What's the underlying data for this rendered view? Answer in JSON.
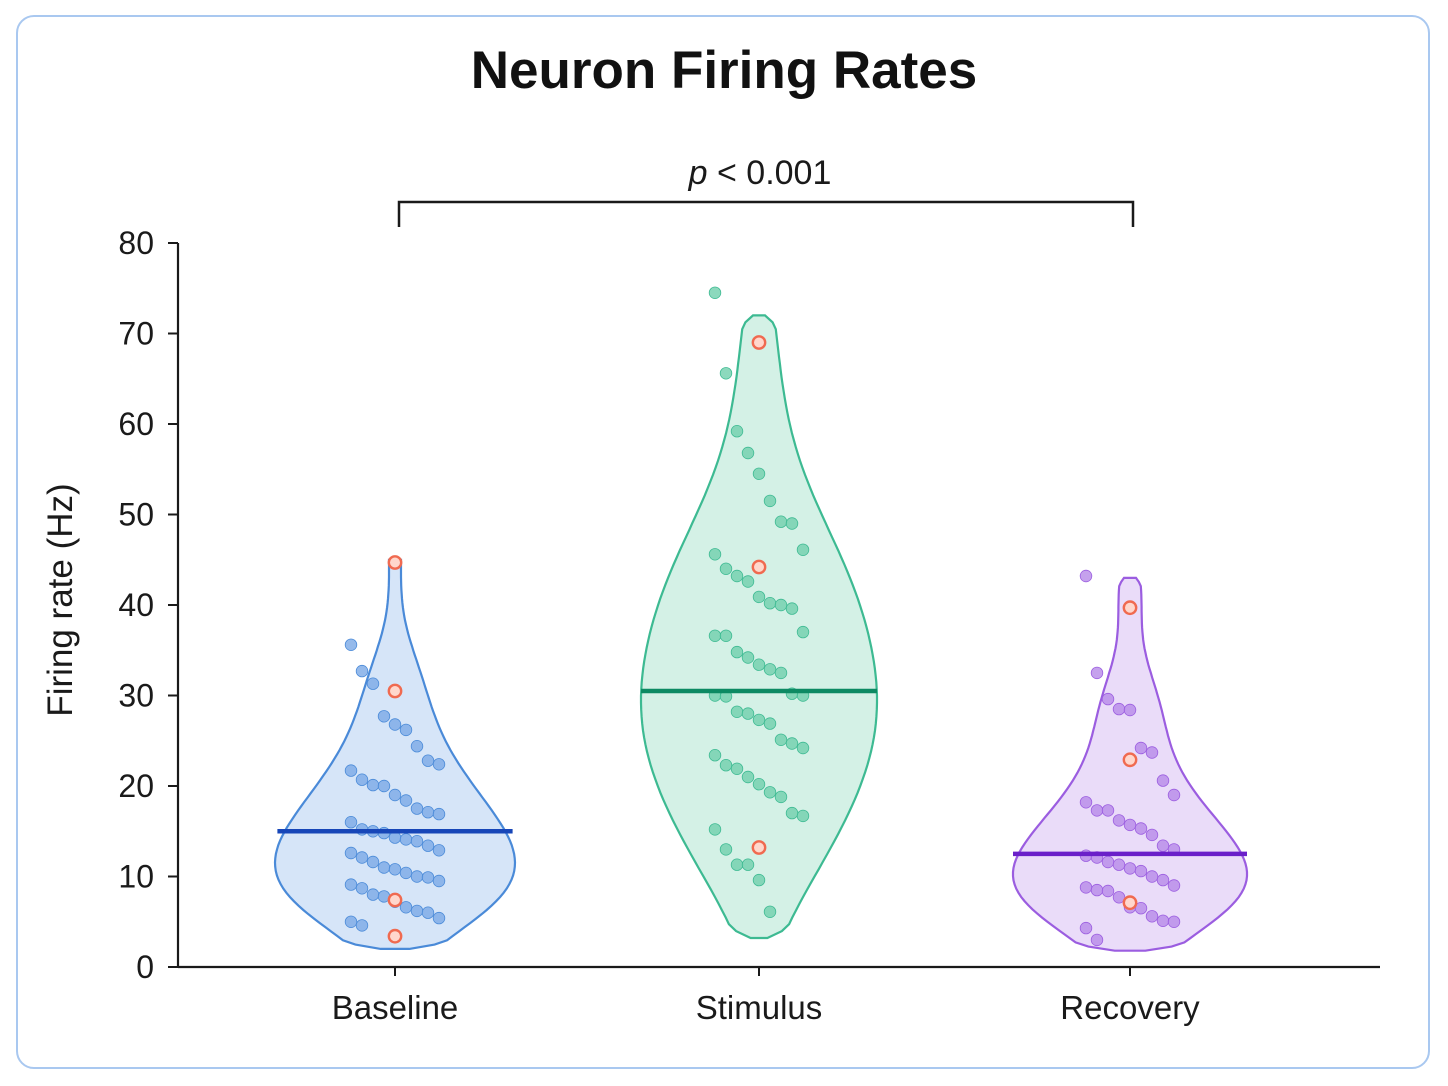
{
  "chart_data": {
    "type": "violin",
    "title": "Neuron Firing Rates",
    "ylabel": "Firing rate (Hz)",
    "xlabel": "",
    "ylim": [
      0,
      80
    ],
    "yticks": [
      0,
      10,
      20,
      30,
      40,
      50,
      60,
      70,
      80
    ],
    "categories": [
      "Baseline",
      "Stimulus",
      "Recovery"
    ],
    "annotation": {
      "italic": "p",
      "text": " < 0.001",
      "from": "Baseline",
      "to": "Recovery"
    },
    "colors": {
      "Baseline": {
        "fill": "#cfe0f7",
        "stroke": "#4a8ad8",
        "point": "#7aa9e6",
        "median": "#1746b8"
      },
      "Stimulus": {
        "fill": "#cdeee2",
        "stroke": "#3dba92",
        "point": "#6fd0ad",
        "median": "#0d8a63"
      },
      "Recovery": {
        "fill": "#e6d6f8",
        "stroke": "#9b5de0",
        "point": "#b68ae8",
        "median": "#6a1fc9"
      },
      "highlight": "#f06a50"
    },
    "series": [
      {
        "category": "Baseline",
        "median": 15,
        "range": [
          2,
          45
        ],
        "highlighted": [
          44.7,
          30.5,
          7.4,
          3.4
        ],
        "points": [
          35.6,
          32.7,
          31.3,
          27.7,
          26.8,
          26.2,
          24.4,
          22.8,
          22.4,
          21.7,
          20.7,
          20.1,
          20.0,
          19.0,
          18.4,
          17.5,
          17.1,
          16.9,
          16.0,
          15.2,
          15.0,
          14.8,
          14.3,
          14.1,
          13.9,
          13.4,
          12.9,
          12.6,
          12.1,
          11.6,
          11.0,
          10.8,
          10.4,
          10.0,
          9.9,
          9.5,
          9.1,
          8.7,
          8.0,
          7.8,
          7.2,
          6.6,
          6.2,
          6.0,
          5.4,
          5.0,
          4.6
        ]
      },
      {
        "category": "Stimulus",
        "median": 30.5,
        "range": [
          3.2,
          72
        ],
        "highlighted": [
          69,
          44.2,
          13.2
        ],
        "points": [
          74.5,
          65.6,
          59.2,
          56.8,
          54.5,
          51.5,
          49.2,
          49.0,
          46.1,
          45.6,
          44.0,
          43.2,
          42.6,
          40.9,
          40.2,
          40.0,
          39.6,
          37.0,
          36.6,
          36.6,
          34.8,
          34.2,
          33.4,
          32.9,
          32.5,
          30.2,
          30.0,
          30.0,
          29.9,
          28.2,
          28.0,
          27.3,
          26.9,
          25.1,
          24.7,
          24.2,
          23.4,
          22.3,
          21.9,
          21.0,
          20.2,
          19.3,
          18.8,
          17.0,
          16.7,
          15.2,
          13.0,
          11.3,
          11.3,
          9.6,
          6.1
        ]
      },
      {
        "category": "Recovery",
        "median": 12.5,
        "range": [
          1.8,
          43
        ],
        "highlighted": [
          39.7,
          22.9,
          7.1
        ],
        "points": [
          43.2,
          32.5,
          29.6,
          28.5,
          28.4,
          24.2,
          23.7,
          20.6,
          19.0,
          18.2,
          17.3,
          17.3,
          16.2,
          15.7,
          15.3,
          14.6,
          13.4,
          13.0,
          12.3,
          12.1,
          11.6,
          11.3,
          10.9,
          10.6,
          10.0,
          9.6,
          9.0,
          8.8,
          8.5,
          8.4,
          7.7,
          6.6,
          6.5,
          5.6,
          5.1,
          5.0,
          4.3,
          3.0
        ]
      }
    ]
  }
}
